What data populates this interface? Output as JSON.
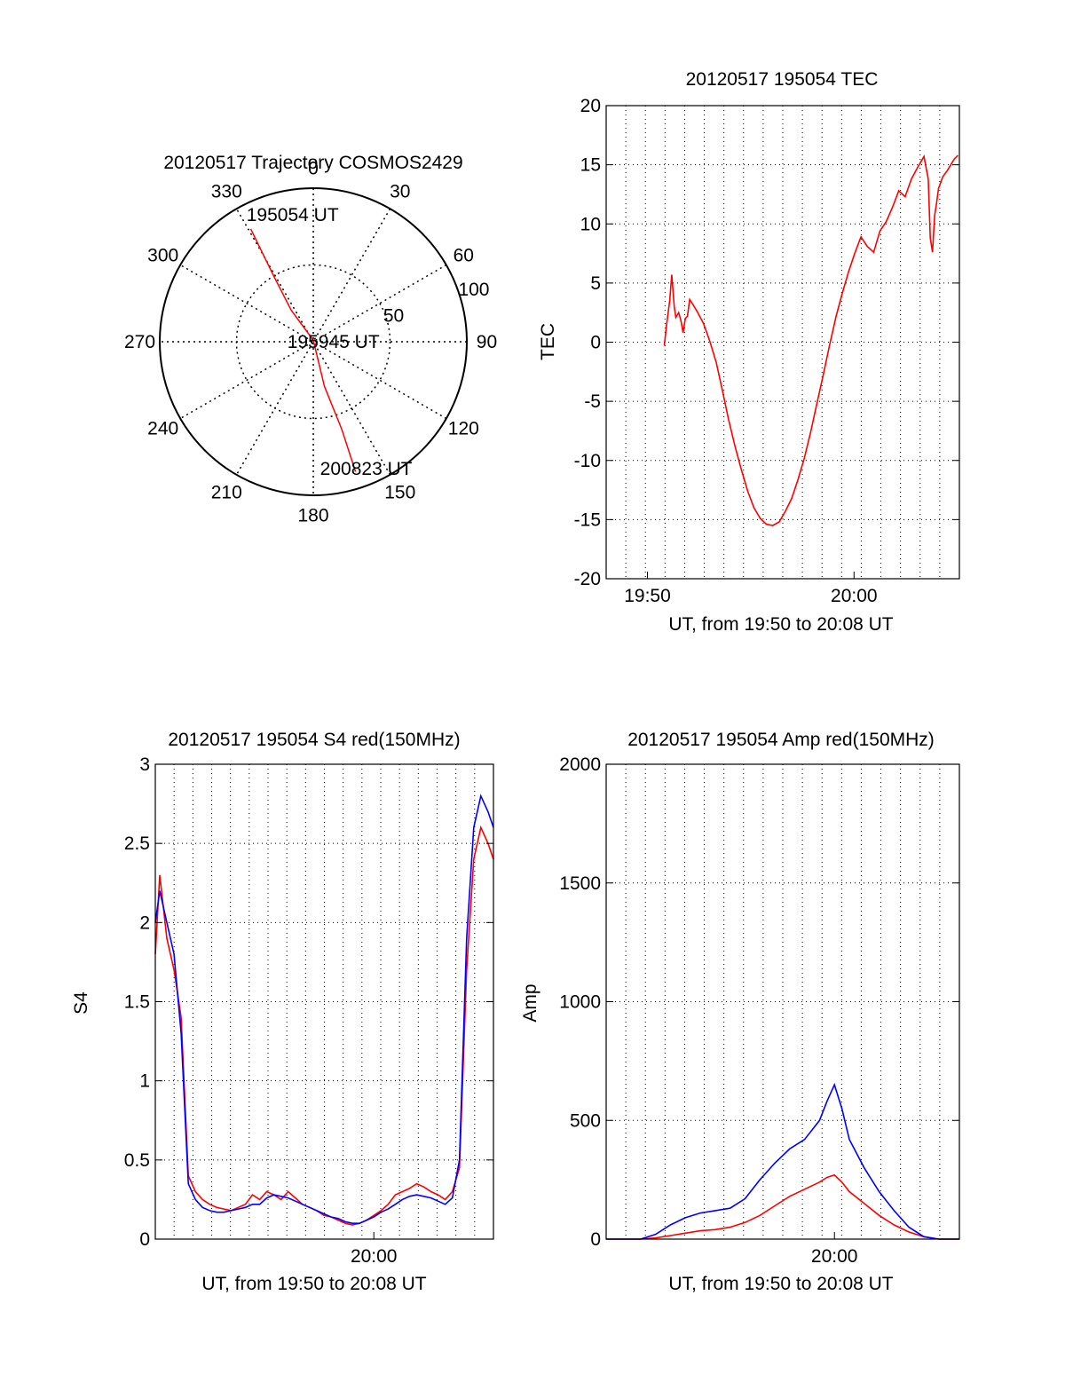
{
  "chart_data": [
    {
      "type": "polar",
      "title": "20120517 Trajectory COSMOS2429",
      "azimuth_labels": [
        "0",
        "30",
        "60",
        "90",
        "120",
        "150",
        "180",
        "210",
        "240",
        "270",
        "300",
        "330"
      ],
      "azimuth_degrees": [
        0,
        30,
        60,
        90,
        120,
        150,
        180,
        210,
        240,
        270,
        300,
        330
      ],
      "radial_labels": [
        "50",
        "100"
      ],
      "radial_values": [
        50,
        100
      ],
      "grid": true,
      "trajectory": {
        "color": "#ff0000",
        "points": [
          {
            "azimuth": 331,
            "zenith": 84
          },
          {
            "azimuth": 329,
            "zenith": 50
          },
          {
            "azimuth": 325,
            "zenith": 25
          },
          {
            "azimuth": 0,
            "zenith": 1
          },
          {
            "azimuth": 166,
            "zenith": 30
          },
          {
            "azimuth": 162,
            "zenith": 60
          },
          {
            "azimuth": 162,
            "zenith": 89
          }
        ],
        "annotations": [
          {
            "text": "195054 UT",
            "azimuth": 350,
            "zenith": 84
          },
          {
            "text": "195945 UT",
            "azimuth": 90,
            "zenith": 12
          },
          {
            "text": "200823 UT",
            "azimuth": 158,
            "zenith": 89
          }
        ]
      }
    },
    {
      "type": "line",
      "title": "20120517 195054 TEC",
      "xlabel": "UT, from 19:50 to 20:08 UT",
      "ylabel": "TEC",
      "xlim": [
        19.8,
        20.085
      ],
      "ylim": [
        -20,
        20
      ],
      "x_ticks": [
        {
          "value": 19.8333,
          "label": "19:50"
        },
        {
          "value": 20.0,
          "label": "20:00"
        }
      ],
      "y_ticks": [
        20,
        15,
        10,
        5,
        0,
        -5,
        -10,
        -15,
        -20
      ],
      "grid": true,
      "series": [
        {
          "color": "#ff0000",
          "x": [
            19.8469,
            19.8488,
            19.8513,
            19.8529,
            19.8549,
            19.8562,
            19.8585,
            19.8604,
            19.8621,
            19.8639,
            19.8656,
            19.8674,
            19.8693,
            19.8734,
            19.8785,
            19.8836,
            19.8888,
            19.8938,
            19.8989,
            19.904,
            19.9091,
            19.9142,
            19.9192,
            19.9243,
            19.9294,
            19.9345,
            19.9396,
            19.9446,
            19.9497,
            19.9548,
            19.9599,
            19.965,
            19.97,
            19.9751,
            19.9802,
            19.9853,
            19.9904,
            19.9954,
            20.0005,
            20.0056,
            20.0107,
            20.0158,
            20.0209,
            20.026,
            20.031,
            20.0361,
            20.0412,
            20.0463,
            20.0514,
            20.0564,
            20.0599,
            20.0615,
            20.0633,
            20.065,
            20.0664,
            20.0682,
            20.0717,
            20.0752,
            20.0786,
            20.081,
            20.0838
          ],
          "y": [
            -0.3,
            1.5,
            3.5,
            5.7,
            3.0,
            2.1,
            2.5,
            1.8,
            0.8,
            2.0,
            2.2,
            3.6,
            3.3,
            2.6,
            1.6,
            0.1,
            -1.7,
            -4.1,
            -6.6,
            -8.8,
            -10.8,
            -12.6,
            -14.0,
            -14.9,
            -15.4,
            -15.5,
            -15.2,
            -14.3,
            -13.2,
            -11.6,
            -9.8,
            -7.6,
            -5.2,
            -2.8,
            -0.3,
            2.1,
            4.1,
            5.9,
            7.5,
            8.9,
            8.1,
            7.6,
            9.4,
            10.2,
            11.4,
            12.8,
            12.3,
            13.8,
            14.8,
            15.7,
            13.8,
            8.8,
            7.6,
            10.7,
            11.6,
            13.0,
            14.0,
            14.5,
            15.1,
            15.5,
            15.8
          ]
        }
      ]
    },
    {
      "type": "line",
      "title": "20120517 195054 S4 red(150MHz)",
      "xlabel": "UT, from 19:50 to 20:08 UT",
      "ylabel": "S4",
      "xlim": [
        19.8469,
        20.0838
      ],
      "ylim": [
        0,
        3
      ],
      "x_ticks": [
        {
          "value": 20.0,
          "label": "20:00"
        }
      ],
      "y_ticks": [
        0,
        0.5,
        1,
        1.5,
        2,
        2.5,
        3
      ],
      "grid": true,
      "series": [
        {
          "color": "#ff0000",
          "x": [
            19.8469,
            19.85,
            19.855,
            19.86,
            19.865,
            19.87,
            19.875,
            19.88,
            19.885,
            19.89,
            19.895,
            19.9,
            19.905,
            19.91,
            19.915,
            19.92,
            19.925,
            19.93,
            19.935,
            19.94,
            19.945,
            19.95,
            19.955,
            19.96,
            19.965,
            19.97,
            19.975,
            19.98,
            19.985,
            19.99,
            19.995,
            20.0,
            20.005,
            20.01,
            20.015,
            20.02,
            20.025,
            20.03,
            20.035,
            20.04,
            20.045,
            20.05,
            20.055,
            20.06,
            20.065,
            20.07,
            20.075,
            20.08,
            20.0838
          ],
          "y": [
            1.8,
            2.3,
            1.9,
            1.7,
            1.4,
            0.4,
            0.3,
            0.25,
            0.22,
            0.2,
            0.19,
            0.18,
            0.2,
            0.22,
            0.28,
            0.25,
            0.3,
            0.28,
            0.25,
            0.3,
            0.26,
            0.22,
            0.2,
            0.18,
            0.15,
            0.14,
            0.12,
            0.1,
            0.09,
            0.1,
            0.12,
            0.15,
            0.18,
            0.22,
            0.28,
            0.3,
            0.32,
            0.35,
            0.33,
            0.3,
            0.28,
            0.25,
            0.3,
            0.45,
            1.7,
            2.4,
            2.6,
            2.5,
            2.4
          ]
        },
        {
          "color": "#0000ff",
          "x": [
            19.8469,
            19.85,
            19.855,
            19.86,
            19.865,
            19.87,
            19.875,
            19.88,
            19.885,
            19.89,
            19.895,
            19.9,
            19.905,
            19.91,
            19.915,
            19.92,
            19.925,
            19.93,
            19.935,
            19.94,
            19.945,
            19.95,
            19.955,
            19.96,
            19.965,
            19.97,
            19.975,
            19.98,
            19.985,
            19.99,
            19.995,
            20.0,
            20.005,
            20.01,
            20.015,
            20.02,
            20.025,
            20.03,
            20.035,
            20.04,
            20.045,
            20.05,
            20.055,
            20.06,
            20.065,
            20.07,
            20.075,
            20.08,
            20.0838
          ],
          "y": [
            2.0,
            2.2,
            2.0,
            1.8,
            1.3,
            0.35,
            0.25,
            0.2,
            0.18,
            0.17,
            0.17,
            0.18,
            0.19,
            0.2,
            0.22,
            0.22,
            0.26,
            0.28,
            0.27,
            0.26,
            0.24,
            0.22,
            0.2,
            0.18,
            0.16,
            0.14,
            0.13,
            0.11,
            0.1,
            0.1,
            0.12,
            0.14,
            0.17,
            0.19,
            0.22,
            0.25,
            0.27,
            0.28,
            0.27,
            0.26,
            0.24,
            0.22,
            0.26,
            0.5,
            1.9,
            2.6,
            2.8,
            2.7,
            2.6
          ]
        }
      ]
    },
    {
      "type": "line",
      "title": "20120517 195054 Amp red(150MHz)",
      "xlabel": "UT, from 19:50 to 20:08 UT",
      "ylabel": "Amp",
      "xlim": [
        19.8469,
        20.0838
      ],
      "ylim": [
        0,
        2000
      ],
      "x_ticks": [
        {
          "value": 20.0,
          "label": "20:00"
        }
      ],
      "y_ticks": [
        0,
        500,
        1000,
        1500,
        2000
      ],
      "grid": true,
      "series": [
        {
          "color": "#ff0000",
          "x": [
            19.8469,
            19.86,
            19.87,
            19.88,
            19.89,
            19.9,
            19.91,
            19.92,
            19.93,
            19.94,
            19.95,
            19.96,
            19.97,
            19.98,
            19.99,
            19.995,
            20.0,
            20.005,
            20.01,
            20.02,
            20.03,
            20.04,
            20.05,
            20.06,
            20.07,
            20.08,
            20.0838
          ],
          "y": [
            0,
            0,
            0,
            5,
            15,
            25,
            35,
            40,
            50,
            70,
            100,
            140,
            180,
            210,
            240,
            260,
            270,
            240,
            200,
            150,
            100,
            60,
            30,
            10,
            0,
            0,
            0
          ]
        },
        {
          "color": "#0000ff",
          "x": [
            19.8469,
            19.86,
            19.87,
            19.88,
            19.89,
            19.9,
            19.91,
            19.92,
            19.93,
            19.94,
            19.95,
            19.96,
            19.97,
            19.98,
            19.99,
            19.995,
            20.0,
            20.005,
            20.01,
            20.02,
            20.03,
            20.04,
            20.05,
            20.06,
            20.07,
            20.08,
            20.0838
          ],
          "y": [
            0,
            0,
            0,
            20,
            60,
            90,
            110,
            120,
            130,
            170,
            250,
            320,
            380,
            420,
            500,
            580,
            650,
            550,
            420,
            300,
            200,
            120,
            50,
            10,
            0,
            0,
            0
          ]
        }
      ]
    }
  ]
}
